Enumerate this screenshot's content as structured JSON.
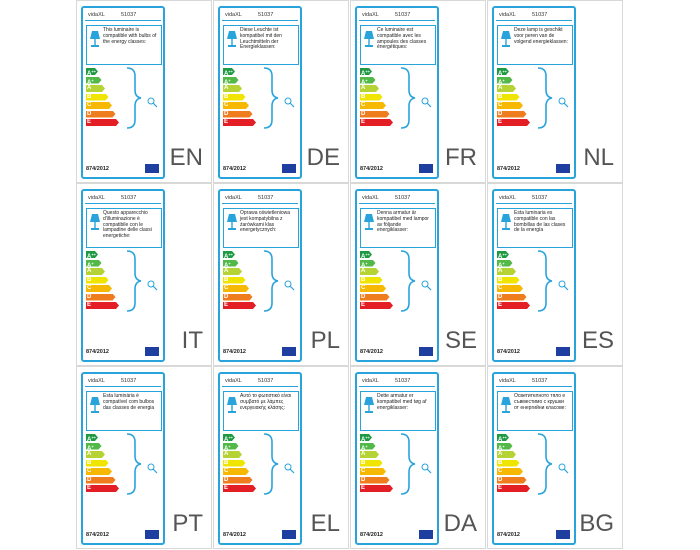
{
  "brand": "vidaXL",
  "model": "51037",
  "regulation": "874/2012",
  "classes": [
    {
      "letter": "A",
      "sup": "++"
    },
    {
      "letter": "A",
      "sup": "+"
    },
    {
      "letter": "A"
    },
    {
      "letter": "B"
    },
    {
      "letter": "C"
    },
    {
      "letter": "D"
    },
    {
      "letter": "E"
    }
  ],
  "labels": [
    {
      "lang": "EN",
      "text": "This luminaire is compatible with bulbs of the energy classes:"
    },
    {
      "lang": "DE",
      "text": "Diese Leuchte ist kompatibel mit den Leuchtmitteln der Energieklassen:"
    },
    {
      "lang": "FR",
      "text": "Ce luminaire est compatible avec les ampoules des classes énergétiques:"
    },
    {
      "lang": "NL",
      "text": "Deze lamp is geschikt voor peren van de volgend energieklassen:"
    },
    {
      "lang": "IT",
      "text": "Questo apparecchio d'illuminazione è compatibile con le lampadine delle classi energetiche:"
    },
    {
      "lang": "PL",
      "text": "Oprawa oświetleniowa jest kompatybilna z żarówkami klas energetycznych:"
    },
    {
      "lang": "SE",
      "text": "Denna armatur är kompatibel med lampor av följande energiklasser:"
    },
    {
      "lang": "ES",
      "text": "Esta luminaria es compatible con las bombillas de las clases de la energía"
    },
    {
      "lang": "PT",
      "text": "Esta luminária é compatível com bulbos das classes de energia"
    },
    {
      "lang": "EL",
      "text": "Αυτό το φωτιστικό είναι συμβατό με λάμπες ενεργειακής κλάσης:"
    },
    {
      "lang": "DA",
      "text": "Dette armatur er kompatibel med tøg af energiklasser:"
    },
    {
      "lang": "BG",
      "text": "Осветителното тяло е съвместимо с крушки от енергийни класове:"
    }
  ]
}
